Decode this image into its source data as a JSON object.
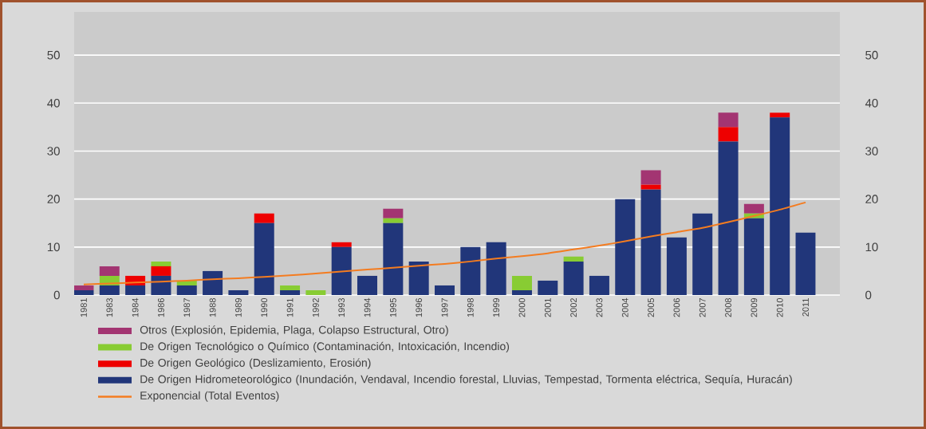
{
  "chart_data": {
    "type": "bar",
    "stacked": true,
    "grid": "y",
    "legend": "bottom",
    "categories": [
      "1981",
      "1983",
      "1984",
      "1986",
      "1987",
      "1988",
      "1989",
      "1990",
      "1991",
      "1992",
      "1993",
      "1994",
      "1995",
      "1996",
      "1997",
      "1998",
      "1999",
      "2000",
      "2001",
      "2002",
      "2003",
      "2004",
      "2005",
      "2006",
      "2007",
      "2008",
      "2009",
      "2010",
      "2011"
    ],
    "series": [
      {
        "name": "De Origen Hidrometeorológico (Inundación, Vendaval, Incendio forestal, Lluvias, Tempestad, Tormenta eléctrica, Sequía, Huracán)",
        "color": "#21367a",
        "values": [
          1,
          2,
          2,
          4,
          2,
          5,
          1,
          15,
          1,
          0,
          10,
          4,
          15,
          7,
          2,
          10,
          11,
          1,
          3,
          7,
          4,
          20,
          22,
          12,
          17,
          32,
          16,
          37,
          13
        ]
      },
      {
        "name": "De Origen Geológico (Deslizamiento, Erosión)",
        "color": "#ee0000",
        "values": [
          0,
          0,
          2,
          2,
          0,
          0,
          0,
          2,
          0,
          0,
          1,
          0,
          0,
          0,
          0,
          0,
          0,
          0,
          0,
          0,
          0,
          0,
          1,
          0,
          0,
          3,
          0,
          1,
          0
        ]
      },
      {
        "name": "De Origen Tecnológico o Químico (Contaminación, Intoxicación, Incendio)",
        "color": "#88cc33",
        "values": [
          0,
          2,
          0,
          1,
          1,
          0,
          0,
          0,
          1,
          1,
          0,
          0,
          1,
          0,
          0,
          0,
          0,
          3,
          0,
          1,
          0,
          0,
          0,
          0,
          0,
          0,
          1,
          0,
          0
        ]
      },
      {
        "name": "Otros (Explosión, Epidemia, Plaga, Colapso Estructural, Otro)",
        "color": "#a33572",
        "values": [
          1,
          2,
          0,
          0,
          0,
          0,
          0,
          0,
          0,
          0,
          0,
          0,
          2,
          0,
          0,
          0,
          0,
          0,
          0,
          0,
          0,
          0,
          3,
          0,
          0,
          3,
          2,
          0,
          0
        ]
      },
      {
        "name": "Exponencial (Total Eventos)",
        "type": "line",
        "color": "#f47c20",
        "values": [
          2.2,
          2.4,
          2.6,
          2.8,
          3.0,
          3.3,
          3.5,
          3.8,
          4.1,
          4.5,
          4.9,
          5.3,
          5.7,
          6.1,
          6.5,
          7.0,
          7.6,
          8.1,
          8.7,
          9.5,
          10.3,
          11.2,
          12.2,
          13.1,
          14.0,
          15.2,
          16.5,
          17.8,
          19.3
        ]
      }
    ],
    "ylim": [
      0,
      59
    ],
    "yticks": [
      0,
      10,
      20,
      30,
      40,
      50
    ],
    "y2lim": [
      0,
      59
    ],
    "y2ticks": [
      0,
      10,
      20,
      30,
      40,
      50
    ]
  }
}
